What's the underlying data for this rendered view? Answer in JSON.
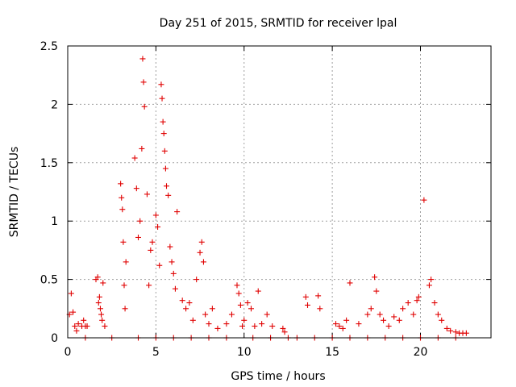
{
  "chart_data": {
    "type": "scatter",
    "title": "Day 251 of 2015, SRMTID for receiver lpal",
    "xlabel": "GPS time / hours",
    "ylabel": "SRMTID / TECUs",
    "xlim": [
      0,
      24
    ],
    "ylim": [
      0,
      2.5
    ],
    "xticks": [
      0,
      5,
      10,
      15,
      20
    ],
    "xtick_labels": [
      "0",
      "5",
      "10",
      "15",
      "20"
    ],
    "yticks": [
      0,
      0.5,
      1,
      1.5,
      2,
      2.5
    ],
    "ytick_labels": [
      "0",
      "0.5",
      "1",
      "1.5",
      "2",
      "2.5"
    ],
    "grid": true,
    "marker": "plus",
    "color": "#e00000",
    "series": [
      {
        "name": "SRMTID",
        "x": [
          0.1,
          0.2,
          0.3,
          0.4,
          0.5,
          0.6,
          0.8,
          0.9,
          1.0,
          1.1,
          1.6,
          1.7,
          1.75,
          1.8,
          1.85,
          1.9,
          1.95,
          2.0,
          2.1,
          3.0,
          3.05,
          3.1,
          3.15,
          3.2,
          3.25,
          3.3,
          3.8,
          3.9,
          4.0,
          4.1,
          4.2,
          4.25,
          4.3,
          4.35,
          4.5,
          4.6,
          4.7,
          4.8,
          5.0,
          5.1,
          5.2,
          5.3,
          5.35,
          5.4,
          5.45,
          5.5,
          5.55,
          5.6,
          5.7,
          5.8,
          5.9,
          6.0,
          6.1,
          6.2,
          6.5,
          6.7,
          6.9,
          7.1,
          7.3,
          7.5,
          7.6,
          7.7,
          7.8,
          8.0,
          8.2,
          8.5,
          9.0,
          9.3,
          9.6,
          9.7,
          9.8,
          9.9,
          10.0,
          10.2,
          10.4,
          10.6,
          10.8,
          11.0,
          11.3,
          11.6,
          12.2,
          12.3,
          13.5,
          13.6,
          14.2,
          14.3,
          15.2,
          15.4,
          15.6,
          15.8,
          16.0,
          16.5,
          17.0,
          17.2,
          17.4,
          17.5,
          17.7,
          17.9,
          18.2,
          18.5,
          18.8,
          19.0,
          19.3,
          19.6,
          19.8,
          19.9,
          20.2,
          20.5,
          20.6,
          20.8,
          21.0,
          21.2,
          21.5,
          21.7,
          22.0,
          22.2,
          22.4,
          22.6,
          1.0,
          2.5,
          4.0,
          5.0,
          6.0,
          7.0,
          8.0,
          9.0,
          10.5,
          11.5,
          12.5,
          13.0,
          14.0,
          15.0,
          16.0,
          17.0,
          18.0,
          19.0,
          20.0,
          21.0,
          22.0
        ],
        "y": [
          0.2,
          0.38,
          0.22,
          0.1,
          0.06,
          0.12,
          0.1,
          0.15,
          0.1,
          0.1,
          0.5,
          0.52,
          0.3,
          0.35,
          0.25,
          0.2,
          0.15,
          0.47,
          0.1,
          1.32,
          1.2,
          1.1,
          0.82,
          0.45,
          0.25,
          0.65,
          1.54,
          1.28,
          0.86,
          1.0,
          1.62,
          2.39,
          2.19,
          1.98,
          1.23,
          0.45,
          0.75,
          0.82,
          1.05,
          0.95,
          0.62,
          2.17,
          2.05,
          1.85,
          1.75,
          1.6,
          1.45,
          1.3,
          1.22,
          0.78,
          0.65,
          0.55,
          0.42,
          1.08,
          0.32,
          0.25,
          0.3,
          0.15,
          0.5,
          0.73,
          0.82,
          0.65,
          0.2,
          0.12,
          0.25,
          0.08,
          0.12,
          0.2,
          0.45,
          0.38,
          0.28,
          0.1,
          0.15,
          0.3,
          0.25,
          0.1,
          0.4,
          0.12,
          0.2,
          0.1,
          0.08,
          0.05,
          0.35,
          0.28,
          0.36,
          0.25,
          0.12,
          0.1,
          0.08,
          0.15,
          0.47,
          0.12,
          0.2,
          0.25,
          0.52,
          0.4,
          0.2,
          0.15,
          0.1,
          0.18,
          0.15,
          0.25,
          0.3,
          0.2,
          0.32,
          0.35,
          1.18,
          0.45,
          0.5,
          0.3,
          0.2,
          0.15,
          0.08,
          0.06,
          0.05,
          0.04,
          0.04,
          0.04,
          0,
          0,
          0,
          0,
          0,
          0,
          0,
          0,
          0,
          0,
          0,
          0,
          0,
          0,
          0,
          0,
          0,
          0,
          0,
          0,
          0
        ]
      }
    ]
  }
}
